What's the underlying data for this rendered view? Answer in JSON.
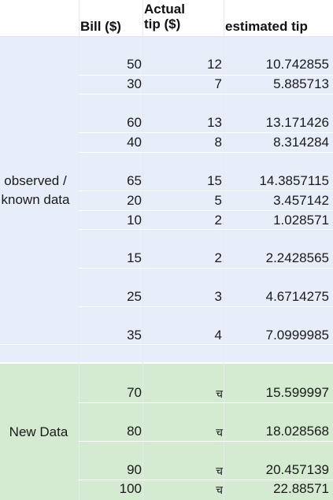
{
  "colors": {
    "observed_band": "#e8edfa",
    "new_band": "#d4ead1",
    "grid": "#ffffff"
  },
  "headers": {
    "bill": "Bill ($)",
    "actual_tip_line1": "Actual",
    "actual_tip_line2": "tip  ($)",
    "estimated_tip": "estimated tip"
  },
  "groups": {
    "observed_label_line1": "observed /",
    "observed_label_line2": "known data",
    "new_label": "New Data"
  },
  "observed_rows": [
    {
      "bill": "50",
      "tip": "12",
      "est": "10.742855"
    },
    {
      "bill": "30",
      "tip": "7",
      "est": "5.885713"
    },
    {
      "bill": "60",
      "tip": "13",
      "est": "13.171426"
    },
    {
      "bill": "40",
      "tip": "8",
      "est": "8.314284"
    },
    {
      "bill": "65",
      "tip": "15",
      "est": "14.3857115"
    },
    {
      "bill": "20",
      "tip": "5",
      "est": "3.457142"
    },
    {
      "bill": "10",
      "tip": "2",
      "est": "1.028571"
    },
    {
      "bill": "15",
      "tip": "2",
      "est": "2.2428565"
    },
    {
      "bill": "25",
      "tip": "3",
      "est": "4.6714275"
    },
    {
      "bill": "35",
      "tip": "4",
      "est": "7.0999985"
    }
  ],
  "new_rows": [
    {
      "bill": "70",
      "tip": "च",
      "est": "15.599997"
    },
    {
      "bill": "80",
      "tip": "च",
      "est": "18.028568"
    },
    {
      "bill": "90",
      "tip": "च",
      "est": "20.457139"
    },
    {
      "bill": "100",
      "tip": "च",
      "est": "22.88571"
    }
  ]
}
